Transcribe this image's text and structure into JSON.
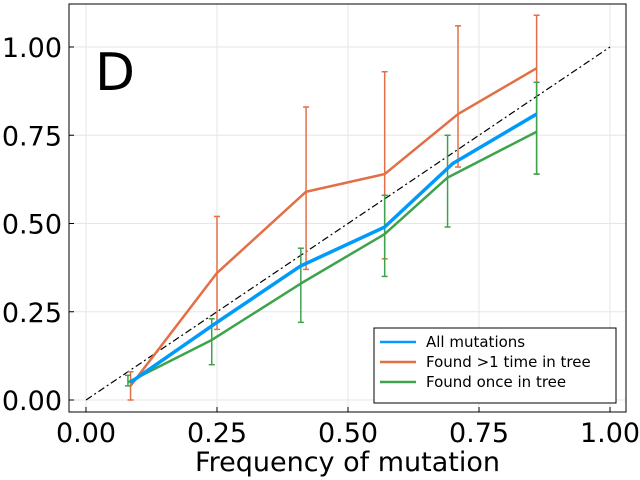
{
  "chart_data": {
    "type": "line",
    "panel_label": "D",
    "xlabel": "Frequency of mutation",
    "ylabel": "",
    "xlim": [
      0,
      1
    ],
    "ylim": [
      0,
      1
    ],
    "xticks": [
      "0.00",
      "0.25",
      "0.50",
      "0.75",
      "1.00"
    ],
    "yticks": [
      "0.00",
      "0.25",
      "0.50",
      "0.75",
      "1.00"
    ],
    "grid": true,
    "legend_position": "bottom-right",
    "reference_line": {
      "style": "dash-dot",
      "color": "#000000",
      "x": [
        0,
        1
      ],
      "y": [
        0,
        1
      ]
    },
    "series": [
      {
        "name": "All mutations",
        "color": "#009AFA",
        "x": [
          0.085,
          0.25,
          0.41,
          0.57,
          0.7,
          0.86
        ],
        "y": [
          0.05,
          0.22,
          0.38,
          0.49,
          0.67,
          0.81
        ]
      },
      {
        "name": "Found >1 time in tree",
        "color": "#E26F46",
        "x": [
          0.085,
          0.25,
          0.42,
          0.57,
          0.71,
          0.86
        ],
        "y": [
          0.04,
          0.36,
          0.59,
          0.64,
          0.81,
          0.94
        ],
        "err_low": [
          0.0,
          0.2,
          0.37,
          0.4,
          0.66,
          0.64
        ],
        "err_high": [
          0.08,
          0.52,
          0.83,
          0.93,
          1.06,
          1.09
        ]
      },
      {
        "name": "Found once in tree",
        "color": "#3DA44D",
        "x": [
          0.08,
          0.24,
          0.41,
          0.57,
          0.69,
          0.86
        ],
        "y": [
          0.05,
          0.17,
          0.33,
          0.47,
          0.63,
          0.76
        ],
        "err_low": [
          0.04,
          0.1,
          0.22,
          0.35,
          0.49,
          0.64
        ],
        "err_high": [
          0.07,
          0.23,
          0.43,
          0.58,
          0.75,
          0.9
        ]
      }
    ]
  }
}
